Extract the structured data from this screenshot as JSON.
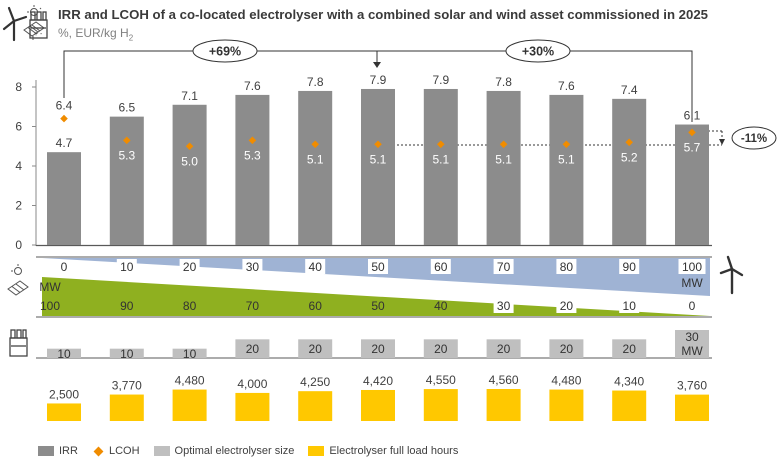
{
  "title": "IRR and LCOH of a co-located electrolyser with a combined solar and wind asset commissioned in 2025",
  "subtitle_prefix": "%, EUR/kg H",
  "subtitle_sub": "2",
  "legend": {
    "irr": "IRR",
    "lcoh": "LCOH",
    "size": "Optimal electrolyser size",
    "hours": "Electrolyser full load hours"
  },
  "colors": {
    "irr": "#8c8c8c",
    "lcoh": "#f08c00",
    "size": "#bfbfbf",
    "hours": "#ffc800",
    "wind": "#9fb3d4",
    "solar": "#8fb020",
    "axis": "#595959",
    "text": "#404040"
  },
  "icons": [
    "wind-turbine-icon",
    "solar-panel-icon",
    "electrolyser-factory-icon"
  ],
  "annotations": {
    "left_change": "+69%",
    "right_change": "+30%",
    "lcoh_change": "-11%"
  },
  "capacity_strip": {
    "wind_labels": [
      "0",
      "10",
      "20",
      "30",
      "40",
      "50",
      "60",
      "70",
      "80",
      "90",
      "100"
    ],
    "solar_labels": [
      "100",
      "90",
      "80",
      "70",
      "60",
      "50",
      "40",
      "30",
      "20",
      "10",
      "0"
    ],
    "unit": "MW"
  },
  "chart_data": {
    "type": "bar",
    "title": "IRR and LCOH of a co-located electrolyser with a combined solar and wind asset commissioned in 2025",
    "subtitle": "%, EUR/kg H2",
    "ylim": [
      0,
      8
    ],
    "yticks": [
      "0",
      "2",
      "4",
      "6",
      "8"
    ],
    "grid": false,
    "legend_position": "bottom",
    "series": [
      {
        "name": "IRR",
        "kind": "bar",
        "values": [
          4.7,
          6.5,
          7.1,
          7.6,
          7.8,
          7.9,
          7.9,
          7.8,
          7.6,
          7.4,
          6.1
        ],
        "labels": [
          "4.7",
          "6.5",
          "7.1",
          "7.6",
          "7.8",
          "7.9",
          "7.9",
          "7.8",
          "7.6",
          "7.4",
          "6.1"
        ]
      },
      {
        "name": "LCOH",
        "kind": "point",
        "values": [
          6.4,
          5.3,
          5.0,
          5.3,
          5.1,
          5.1,
          5.1,
          5.1,
          5.1,
          5.2,
          5.7
        ],
        "labels": [
          "6.4",
          "5.3",
          "5.0",
          "5.3",
          "5.1",
          "5.1",
          "5.1",
          "5.1",
          "5.1",
          "5.2",
          "5.7"
        ]
      },
      {
        "name": "Optimal electrolyser size",
        "kind": "bar",
        "values": [
          10,
          10,
          10,
          20,
          20,
          20,
          20,
          20,
          20,
          20,
          30
        ],
        "labels": [
          "10",
          "10",
          "10",
          "20",
          "20",
          "20",
          "20",
          "20",
          "20",
          "20",
          "30"
        ],
        "unit": "MW"
      },
      {
        "name": "Electrolyser full load hours",
        "kind": "bar",
        "values": [
          2500,
          3770,
          4480,
          4000,
          4250,
          4420,
          4550,
          4560,
          4480,
          4340,
          3760
        ],
        "labels": [
          "2,500",
          "3,770",
          "4,480",
          "4,000",
          "4,250",
          "4,420",
          "4,550",
          "4,560",
          "4,480",
          "4,340",
          "3,760"
        ]
      }
    ]
  }
}
